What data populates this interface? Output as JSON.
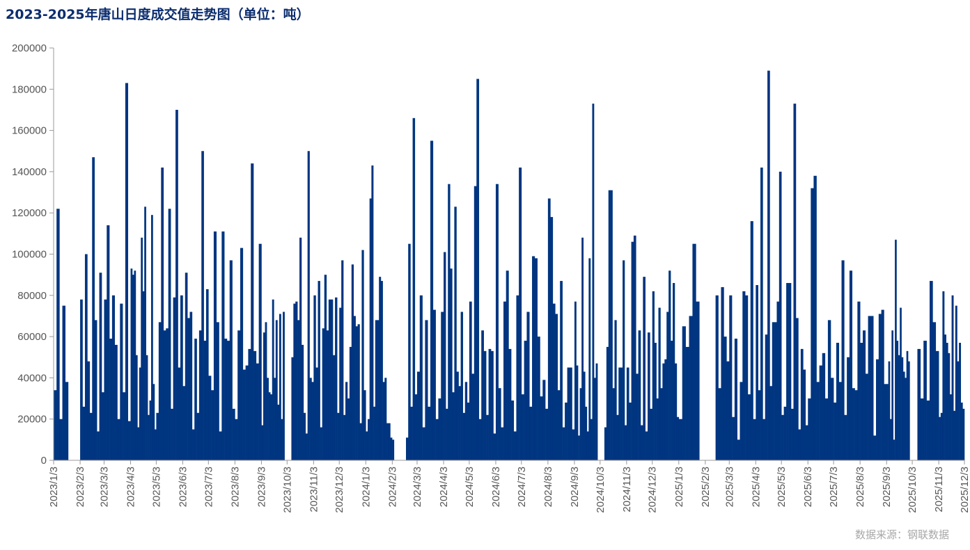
{
  "chart_data": {
    "type": "bar",
    "title": "2023-2025年唐山日度成交值走势图（单位：吨）",
    "source": "数据来源：钢联数据",
    "xlabel": "",
    "ylabel": "",
    "ylim": [
      0,
      200000
    ],
    "yticks": [
      "0",
      "20000",
      "40000",
      "60000",
      "80000",
      "100000",
      "120000",
      "140000",
      "160000",
      "180000",
      "200000"
    ],
    "xticks": [
      "2023/1/3",
      "2023/2/3",
      "2023/3/3",
      "2023/4/3",
      "2023/5/3",
      "2023/6/3",
      "2023/7/3",
      "2023/8/3",
      "2023/9/3",
      "2023/10/3",
      "2023/11/3",
      "2023/12/3",
      "2024/1/3",
      "2024/2/3",
      "2024/3/3",
      "2024/4/3",
      "2024/5/3",
      "2024/6/3",
      "2024/7/3",
      "2024/8/3",
      "2024/9/3",
      "2024/10/3",
      "2024/11/3",
      "2024/12/3",
      "2025/1/3",
      "2025/2/3",
      "2025/3/3",
      "2025/4/3",
      "2025/5/3",
      "2025/6/3",
      "2025/7/3",
      "2025/8/3",
      "2025/9/3",
      "2025/10/3",
      "2025/11/3",
      "2025/12/3"
    ],
    "grid": false,
    "bar_color": "#003580",
    "segments": [
      {
        "from": "2023/1/3",
        "to": "2023/1/20",
        "values": [
          34000,
          122000,
          20000,
          75000,
          38000
        ]
      },
      {
        "from": "2023/2/3",
        "to": "2023/3/3",
        "values": [
          78000,
          26000,
          100000,
          48000,
          23000,
          147000,
          68000,
          14000,
          91000,
          33000
        ]
      },
      {
        "from": "2023/3/3",
        "to": "2023/4/3",
        "values": [
          78000,
          114000,
          59000,
          80000,
          56000,
          20000,
          76000,
          33000,
          183000,
          19000
        ]
      },
      {
        "from": "2023/4/3",
        "to": "2023/5/3",
        "values": [
          93000,
          90000,
          92000,
          51000,
          16000,
          45000,
          108000,
          82000,
          123000,
          51000,
          22000,
          29000,
          119000,
          37000,
          15000
        ]
      },
      {
        "from": "2023/5/3",
        "to": "2023/6/3",
        "values": [
          23000,
          67000,
          142000,
          63000,
          64000,
          122000,
          25000,
          79000,
          170000,
          45000,
          80000
        ]
      },
      {
        "from": "2023/6/3",
        "to": "2023/7/3",
        "values": [
          36000,
          91000,
          69000,
          72000,
          15000,
          59000,
          23000,
          63000,
          150000,
          58000,
          83000
        ]
      },
      {
        "from": "2023/7/3",
        "to": "2023/8/3",
        "values": [
          41000,
          34000,
          111000,
          67000,
          14000,
          111000,
          59000,
          58000,
          97000,
          25000
        ]
      },
      {
        "from": "2023/8/3",
        "to": "2023/9/3",
        "values": [
          20000,
          63000,
          103000,
          44000,
          46000,
          54000,
          144000,
          53000,
          47000,
          105000
        ]
      },
      {
        "from": "2023/9/3",
        "to": "2023/9/30",
        "values": [
          17000,
          62000,
          67000,
          40000,
          33000,
          32000,
          78000,
          40000,
          68000,
          27000,
          71000,
          20000,
          72000
        ]
      },
      {
        "from": "2023/10/8",
        "to": "2023/11/3",
        "values": [
          50000,
          76000,
          77000,
          68000,
          108000,
          56000,
          23000,
          13000,
          150000,
          40000,
          38000
        ]
      },
      {
        "from": "2023/11/3",
        "to": "2023/12/3",
        "values": [
          80000,
          45000,
          87000,
          16000,
          64000,
          90000,
          63000,
          78000,
          78000,
          51000,
          79000,
          23000
        ]
      },
      {
        "from": "2023/12/3",
        "to": "2024/1/3",
        "values": [
          74000,
          97000,
          22000,
          38000,
          30000,
          55000,
          95000,
          70000,
          65000,
          66000,
          18000,
          102000,
          34000
        ]
      },
      {
        "from": "2024/1/3",
        "to": "2024/2/5",
        "values": [
          14000,
          20000,
          127000,
          143000,
          26000,
          68000,
          68000,
          89000,
          87000,
          38000,
          40000,
          18000,
          18000,
          11000,
          10000
        ]
      },
      {
        "from": "2024/2/19",
        "to": "2024/3/3",
        "values": [
          11000,
          105000,
          26000,
          166000,
          32000
        ]
      },
      {
        "from": "2024/3/3",
        "to": "2024/4/3",
        "values": [
          43000,
          80000,
          16000,
          68000,
          26000,
          155000,
          73000,
          20000,
          30000,
          72000
        ]
      },
      {
        "from": "2024/4/3",
        "to": "2024/5/3",
        "values": [
          101000,
          25000,
          134000,
          93000,
          33000,
          123000,
          43000,
          36000,
          72000,
          23000,
          38000,
          28000
        ]
      },
      {
        "from": "2024/5/3",
        "to": "2024/6/3",
        "values": [
          77000,
          42000,
          133000,
          185000,
          20000,
          63000,
          53000,
          22000,
          54000,
          53000,
          13000
        ]
      },
      {
        "from": "2024/6/3",
        "to": "2024/7/3",
        "values": [
          134000,
          35000,
          16000,
          77000,
          92000,
          54000,
          29000,
          14000,
          80000,
          142000
        ]
      },
      {
        "from": "2024/7/3",
        "to": "2024/8/3",
        "values": [
          32000,
          58000,
          72000,
          26000,
          99000,
          98000,
          60000,
          31000,
          39000,
          25000
        ]
      },
      {
        "from": "2024/8/3",
        "to": "2024/9/3",
        "values": [
          127000,
          118000,
          76000,
          71000,
          34000,
          87000,
          16000,
          28000,
          45000,
          45000,
          15000
        ]
      },
      {
        "from": "2024/9/3",
        "to": "2024/9/30",
        "values": [
          77000,
          46000,
          12000,
          35000,
          108000,
          43000,
          26000,
          14000,
          98000,
          20000,
          173000,
          40000,
          47000
        ]
      },
      {
        "from": "2024/10/8",
        "to": "2024/11/3",
        "values": [
          16000,
          55000,
          131000,
          131000,
          35000,
          68000,
          22000,
          45000,
          45000,
          97000,
          17000
        ]
      },
      {
        "from": "2024/11/3",
        "to": "2024/12/3",
        "values": [
          45000,
          28000,
          106000,
          109000,
          42000,
          63000,
          17000,
          89000,
          14000,
          62000,
          25000
        ]
      },
      {
        "from": "2024/12/3",
        "to": "2025/1/3",
        "values": [
          82000,
          57000,
          30000,
          74000,
          35000,
          47000,
          49000,
          72000,
          92000,
          58000,
          86000,
          47000,
          21000
        ]
      },
      {
        "from": "2025/1/3",
        "to": "2025/1/27",
        "values": [
          20000,
          65000,
          55000,
          70000,
          105000,
          77000
        ]
      },
      {
        "from": "2025/2/15",
        "to": "2025/3/3",
        "values": [
          80000,
          35000,
          84000,
          60000,
          48000
        ]
      },
      {
        "from": "2025/3/3",
        "to": "2025/4/3",
        "values": [
          80000,
          21000,
          59000,
          10000,
          38000,
          82000,
          80000,
          32000,
          116000,
          20000
        ]
      },
      {
        "from": "2025/4/3",
        "to": "2025/5/3",
        "values": [
          85000,
          34000,
          142000,
          20000,
          61000,
          189000,
          36000,
          67000,
          67000,
          77000,
          140000
        ]
      },
      {
        "from": "2025/5/3",
        "to": "2025/6/3",
        "values": [
          22000,
          26000,
          86000,
          86000,
          25000,
          173000,
          69000,
          15000,
          54000,
          44000,
          17000
        ]
      },
      {
        "from": "2025/6/3",
        "to": "2025/7/3",
        "values": [
          30000,
          132000,
          138000,
          38000,
          46000,
          52000,
          30000,
          68000,
          40000
        ]
      },
      {
        "from": "2025/7/3",
        "to": "2025/8/3",
        "values": [
          28000,
          57000,
          38000,
          97000,
          22000,
          50000,
          92000,
          35000,
          34000,
          77000
        ]
      },
      {
        "from": "2025/8/3",
        "to": "2025/9/3",
        "values": [
          57000,
          63000,
          42000,
          70000,
          70000,
          12000,
          49000,
          71000,
          73000,
          37000
        ]
      },
      {
        "from": "2025/9/3",
        "to": "2025/9/30",
        "values": [
          37000,
          48000,
          20000,
          63000,
          10000,
          107000,
          58000,
          51000,
          74000,
          50000,
          43000,
          40000,
          53000,
          48000
        ]
      },
      {
        "from": "2025/10/9",
        "to": "2025/11/3",
        "values": [
          54000,
          30000,
          58000,
          29000,
          87000,
          67000,
          53000
        ]
      },
      {
        "from": "2025/11/3",
        "to": "2025/12/3",
        "values": [
          21000,
          23000,
          82000,
          61000,
          57000,
          52000,
          32000,
          80000,
          24000,
          75000,
          48000,
          57000,
          28000,
          25000
        ]
      }
    ]
  }
}
